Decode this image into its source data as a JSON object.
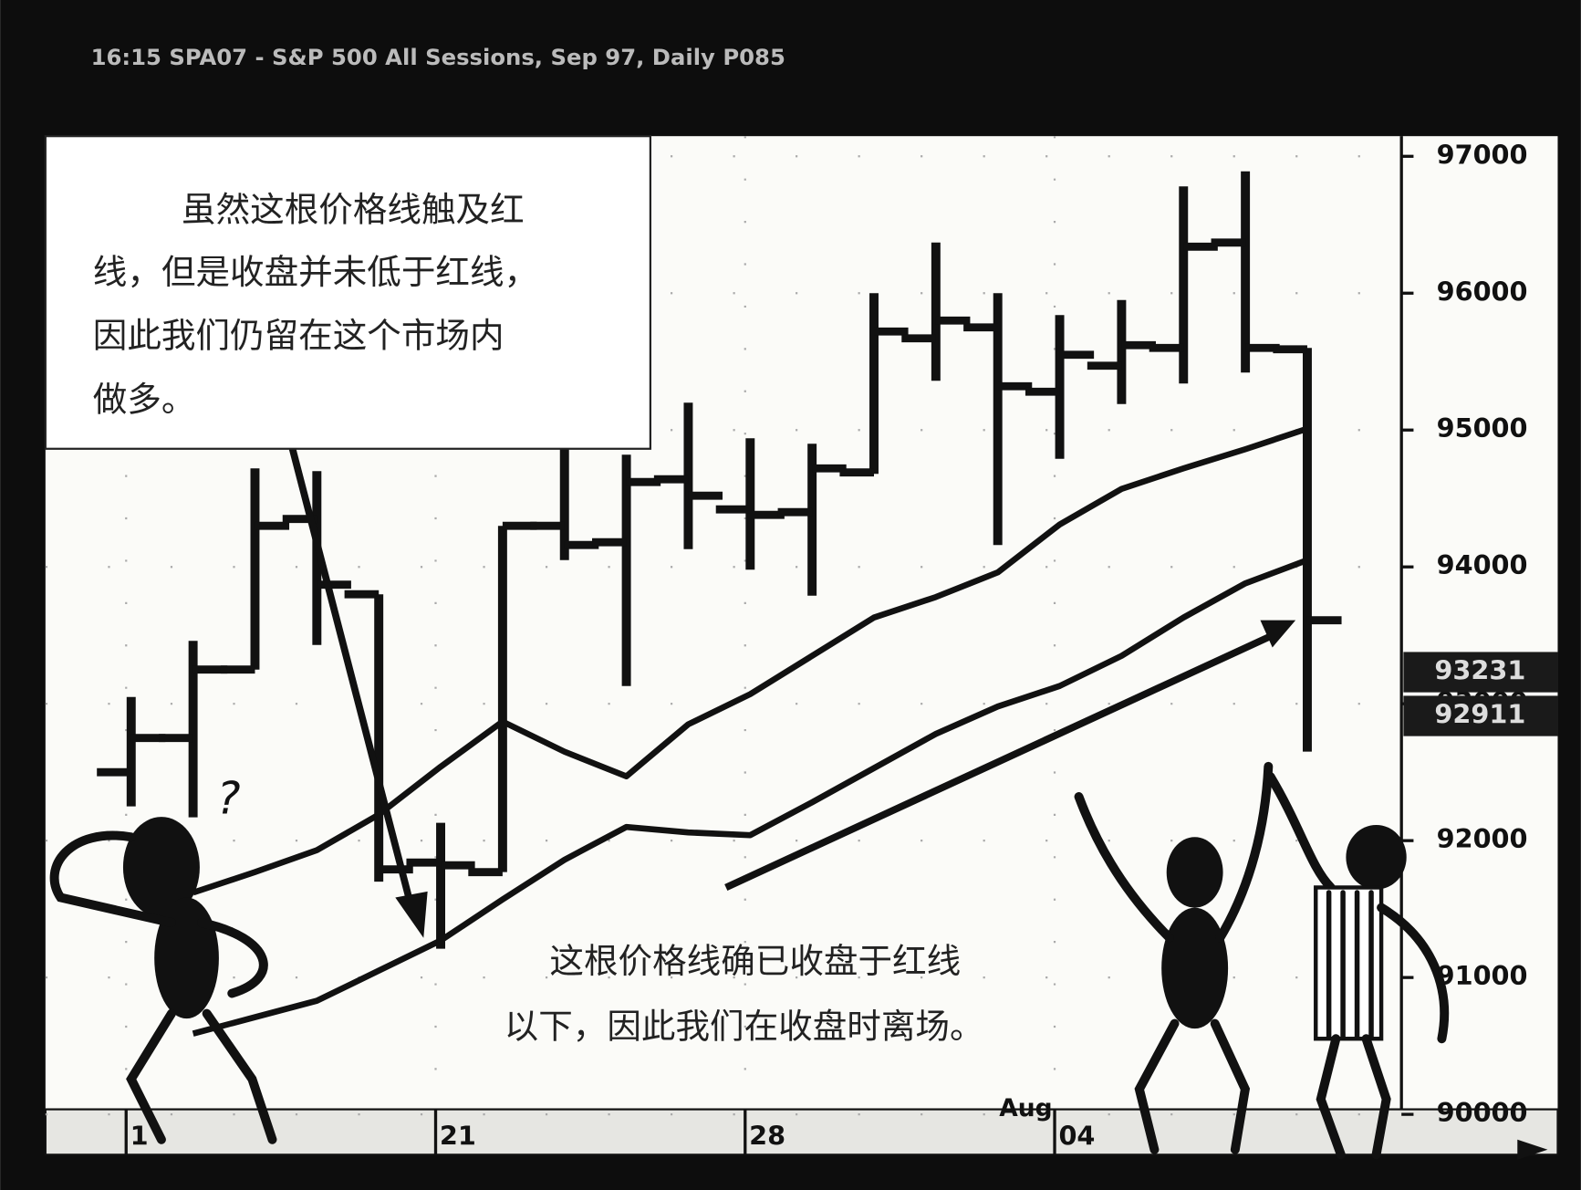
{
  "chart_data": {
    "type": "ohlc",
    "header": "16:15  SPA07 - S&P 500 All Sessions, Sep 97, Daily  P085",
    "categories": [
      "1",
      null,
      null,
      null,
      null,
      "21",
      null,
      null,
      null,
      null,
      "28",
      null,
      null,
      null,
      null,
      "04",
      null,
      null,
      null,
      null
    ],
    "month_label": "Aug",
    "open": [
      92500,
      92750,
      93250,
      94350,
      93800,
      91840,
      91770,
      94300,
      94180,
      94640,
      94420,
      94400,
      94690,
      95670,
      95750,
      95280,
      95470,
      95600,
      96370,
      95590
    ],
    "high": [
      93050,
      93460,
      94720,
      94700,
      93800,
      92130,
      94300,
      94860,
      94820,
      95200,
      94940,
      94900,
      96000,
      96370,
      96000,
      95840,
      95950,
      96780,
      96890,
      95600
    ],
    "low": [
      92250,
      92170,
      93250,
      93430,
      91700,
      91210,
      91770,
      94050,
      93130,
      94130,
      93980,
      93790,
      94680,
      95360,
      94160,
      94790,
      95190,
      95340,
      95420,
      92650
    ],
    "close": [
      92750,
      93250,
      94300,
      93870,
      91790,
      91820,
      94300,
      94160,
      94620,
      94520,
      94380,
      94720,
      95720,
      95800,
      95320,
      95550,
      95620,
      96340,
      95600,
      93610
    ],
    "color": "#111111",
    "overlays": [
      {
        "color": "#111111",
        "values": [
          null,
          91620,
          91770,
          91930,
          92190,
          92540,
          92870,
          92650,
          92470,
          92850,
          93070,
          93350,
          93630,
          93780,
          93960,
          94310,
          94570,
          94720,
          94860,
          95010
        ]
      },
      {
        "color": "#111111",
        "values": [
          null,
          90590,
          90710,
          90830,
          91050,
          91270,
          91570,
          91860,
          92100,
          92060,
          92040,
          92280,
          92530,
          92780,
          92980,
          93130,
          93350,
          93630,
          93880,
          94050
        ]
      }
    ],
    "markers": [
      93231,
      92911
    ],
    "ylim": [
      90000,
      97000
    ],
    "yticks": [
      90000,
      91000,
      92000,
      93000,
      94000,
      95000,
      96000,
      97000
    ],
    "grid": true,
    "annotation_top": [
      "虽然这根价格线触及红",
      "线，但是收盘并未低于红线，",
      "因此我们仍留在这个市场内",
      "做多。"
    ],
    "annotation_bottom": [
      "这根价格线确已收盘于红线",
      "以下，因此我们在收盘时离场。"
    ],
    "figure_text": "?"
  }
}
